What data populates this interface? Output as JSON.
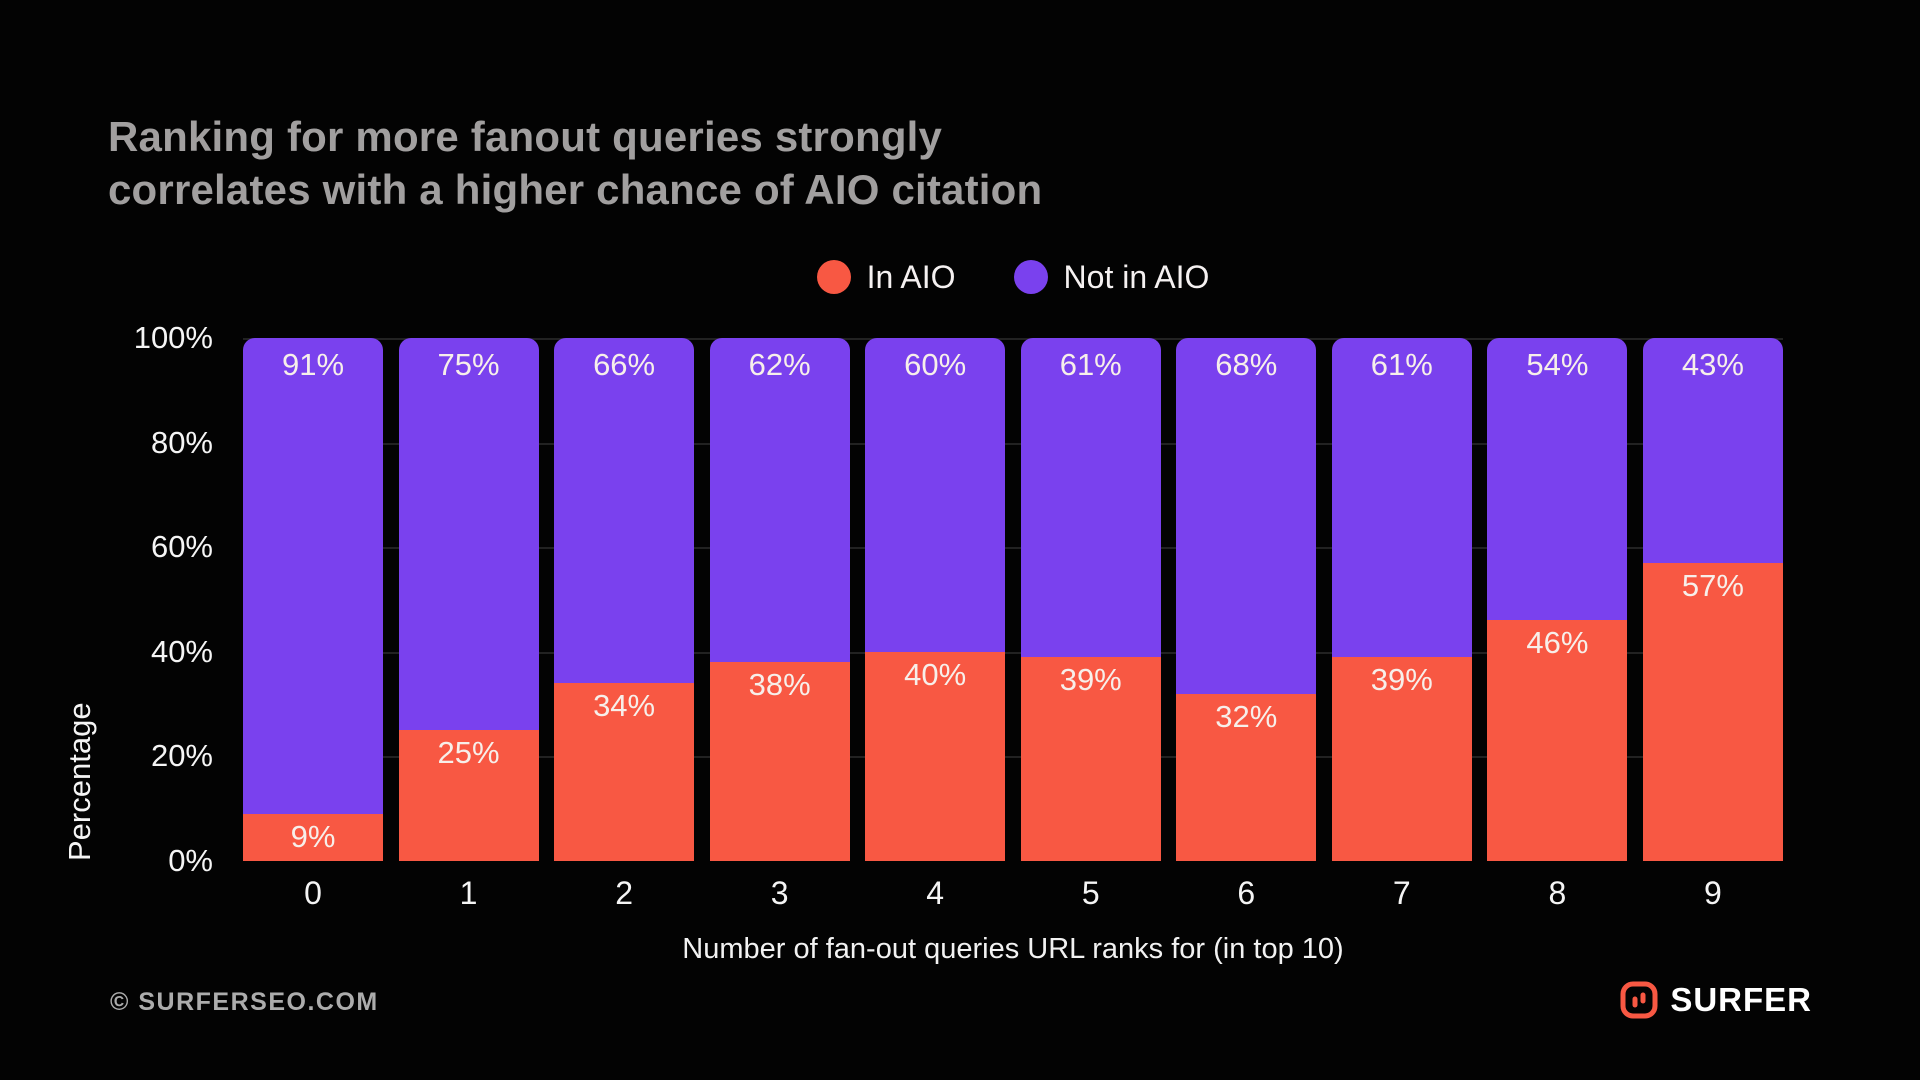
{
  "title": {
    "line1": "Ranking for more fanout queries strongly",
    "line2": "correlates with a higher chance of AIO citation"
  },
  "legend": [
    {
      "label": "In AIO",
      "color": "#F85843"
    },
    {
      "label": "Not in AIO",
      "color": "#7A41EE"
    }
  ],
  "chart_data": {
    "type": "bar",
    "stacked": true,
    "title": "Ranking for more fanout queries strongly correlates with a higher chance of AIO citation",
    "categories": [
      "0",
      "1",
      "2",
      "3",
      "4",
      "5",
      "6",
      "7",
      "8",
      "9"
    ],
    "series": [
      {
        "name": "In AIO",
        "color": "#F85843",
        "values": [
          9,
          25,
          34,
          38,
          40,
          39,
          32,
          39,
          46,
          57
        ]
      },
      {
        "name": "Not in AIO",
        "color": "#7A41EE",
        "values": [
          91,
          75,
          66,
          62,
          60,
          61,
          68,
          61,
          54,
          43
        ]
      }
    ],
    "value_label_format": "{v}%",
    "xlabel": "Number of fan-out queries URL ranks for (in top 10)",
    "ylabel": "Percentage",
    "ylim": [
      0,
      100
    ],
    "yticks": [
      {
        "label": "100%",
        "value": 100
      },
      {
        "label": "80%",
        "value": 80
      },
      {
        "label": "60%",
        "value": 60
      },
      {
        "label": "40%",
        "value": 40
      },
      {
        "label": "20%",
        "value": 20
      },
      {
        "label": "0%",
        "value": 0
      },
      {
        "label": "",
        "value": 0
      }
    ],
    "gridline_values": [
      100,
      80,
      60,
      40,
      20
    ],
    "grid": true,
    "legend_position": "top"
  },
  "footer": {
    "copyright": "© SURFERSEO.COM",
    "brand": "SURFER"
  },
  "icons": {
    "brand_logo": "surfer-equalizer-icon"
  },
  "colors": {
    "background": "#030303",
    "title_text": "#A19F9F",
    "tick_text": "#F5F5F5",
    "bar_label_text": "#F7EFEA",
    "gridline": "#222222",
    "footer_text": "#ACACAC",
    "accent_red": "#F85843",
    "accent_purple": "#7A41EE"
  }
}
